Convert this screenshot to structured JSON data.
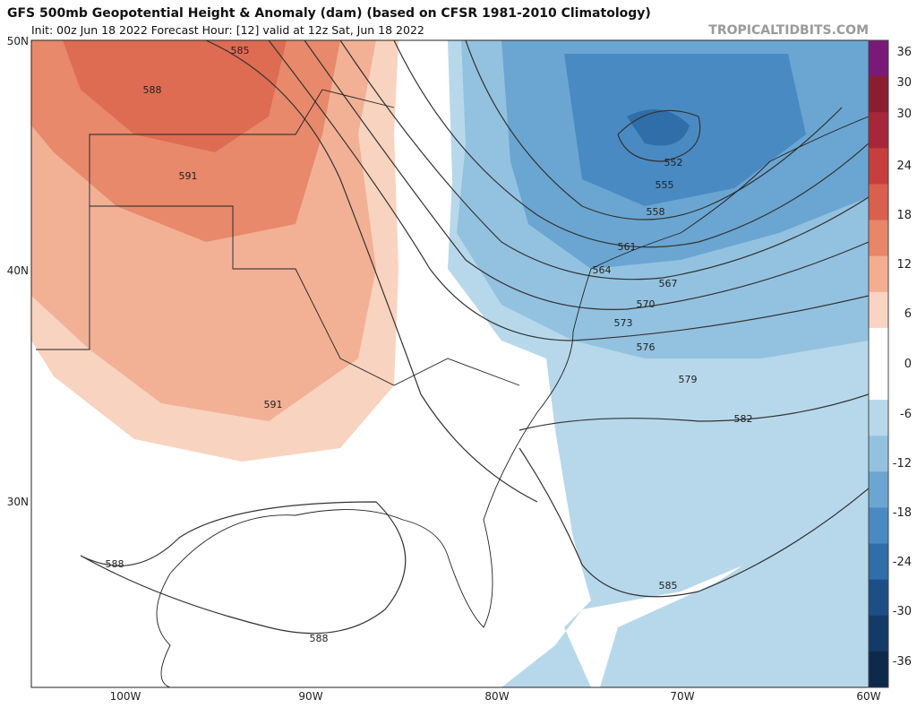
{
  "header": {
    "title": "GFS 500mb Geopotential Height & Anomaly (dam) (based on CFSR 1981-2010 Climatology)",
    "subtitle": "Init: 00z Jun 18 2022   Forecast Hour: [12]   valid at 12z Sat, Jun 18 2022",
    "credit": "TROPICALTIDBITS.COM"
  },
  "map": {
    "lat_labels": [
      "50N",
      "40N",
      "30N"
    ],
    "lon_labels": [
      "100W",
      "90W",
      "80W",
      "70W",
      "60W"
    ],
    "contour_labels": [
      "585",
      "588",
      "591",
      "591",
      "552",
      "555",
      "558",
      "561",
      "564",
      "567",
      "570",
      "573",
      "576",
      "579",
      "582",
      "585",
      "588",
      "588"
    ]
  },
  "colorbar": {
    "labels": [
      "36",
      "30",
      "30",
      "24",
      "18",
      "12",
      "6",
      "0",
      "-6",
      "-12",
      "-18",
      "-24",
      "-30",
      "-36"
    ]
  }
}
